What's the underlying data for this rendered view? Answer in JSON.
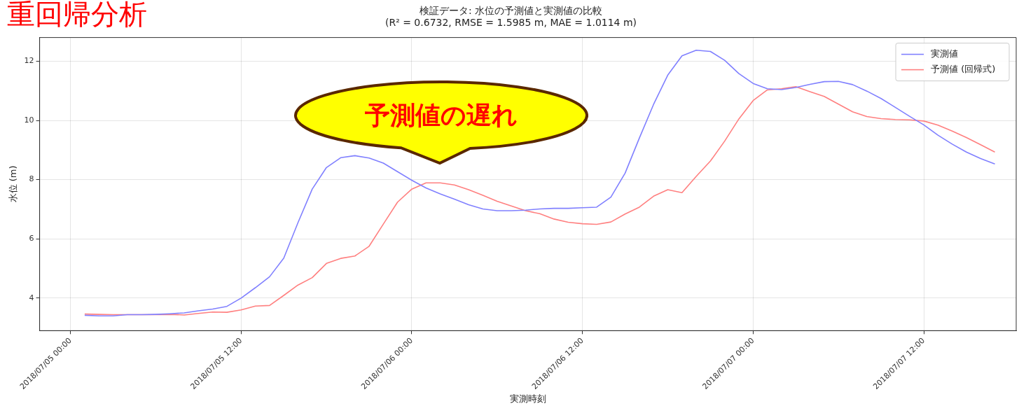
{
  "chart_data": {
    "type": "line",
    "title": "検証データ: 水位の予測値と実測値の比較",
    "subtitle": "(R² = 0.6732, RMSE = 1.5985 m, MAE = 1.0114 m)",
    "xlabel": "実測時刻",
    "ylabel": "水位 (m)",
    "annotations": [
      "重回帰分析",
      "予測値の遅れ"
    ],
    "x": [
      "2018-07-05T01:00",
      "2018-07-05T02:00",
      "2018-07-05T03:00",
      "2018-07-05T04:00",
      "2018-07-05T05:00",
      "2018-07-05T06:00",
      "2018-07-05T07:00",
      "2018-07-05T08:00",
      "2018-07-05T09:00",
      "2018-07-05T10:00",
      "2018-07-05T11:00",
      "2018-07-05T12:00",
      "2018-07-05T13:00",
      "2018-07-05T14:00",
      "2018-07-05T15:00",
      "2018-07-05T16:00",
      "2018-07-05T17:00",
      "2018-07-05T18:00",
      "2018-07-05T19:00",
      "2018-07-05T20:00",
      "2018-07-05T21:00",
      "2018-07-05T22:00",
      "2018-07-05T23:00",
      "2018-07-06T00:00",
      "2018-07-06T01:00",
      "2018-07-06T02:00",
      "2018-07-06T03:00",
      "2018-07-06T04:00",
      "2018-07-06T05:00",
      "2018-07-06T06:00",
      "2018-07-06T07:00",
      "2018-07-06T08:00",
      "2018-07-06T09:00",
      "2018-07-06T10:00",
      "2018-07-06T11:00",
      "2018-07-06T12:00",
      "2018-07-06T13:00",
      "2018-07-06T14:00",
      "2018-07-06T15:00",
      "2018-07-06T16:00",
      "2018-07-06T17:00",
      "2018-07-06T18:00",
      "2018-07-06T19:00",
      "2018-07-06T20:00",
      "2018-07-06T21:00",
      "2018-07-06T22:00",
      "2018-07-06T23:00",
      "2018-07-07T00:00",
      "2018-07-07T01:00",
      "2018-07-07T02:00",
      "2018-07-07T03:00",
      "2018-07-07T04:00",
      "2018-07-07T05:00",
      "2018-07-07T06:00",
      "2018-07-07T07:00",
      "2018-07-07T08:00",
      "2018-07-07T09:00",
      "2018-07-07T10:00",
      "2018-07-07T11:00",
      "2018-07-07T12:00",
      "2018-07-07T13:00",
      "2018-07-07T14:00",
      "2018-07-07T15:00",
      "2018-07-07T16:00",
      "2018-07-07T17:00"
    ],
    "series": [
      {
        "name": "実測値",
        "color": "#8080ff",
        "values": [
          3.42,
          3.4,
          3.4,
          3.44,
          3.44,
          3.45,
          3.47,
          3.5,
          3.57,
          3.63,
          3.72,
          4.0,
          4.35,
          4.72,
          5.35,
          6.55,
          7.68,
          8.41,
          8.74,
          8.81,
          8.73,
          8.56,
          8.27,
          7.98,
          7.72,
          7.52,
          7.34,
          7.15,
          7.01,
          6.95,
          6.95,
          6.97,
          7.01,
          7.03,
          7.03,
          7.05,
          7.07,
          7.41,
          8.22,
          9.4,
          10.54,
          11.53,
          12.18,
          12.37,
          12.33,
          12.03,
          11.58,
          11.25,
          11.07,
          11.04,
          11.11,
          11.22,
          11.31,
          11.32,
          11.21,
          10.99,
          10.74,
          10.44,
          10.14,
          9.85,
          9.5,
          9.2,
          8.93,
          8.71,
          8.53
        ]
      },
      {
        "name": "予測値 (回帰式)",
        "color": "#ff8080",
        "values": [
          3.46,
          3.45,
          3.44,
          3.44,
          3.44,
          3.44,
          3.45,
          3.43,
          3.48,
          3.53,
          3.52,
          3.6,
          3.73,
          3.75,
          4.09,
          4.44,
          4.69,
          5.17,
          5.34,
          5.42,
          5.75,
          6.5,
          7.24,
          7.68,
          7.89,
          7.89,
          7.82,
          7.66,
          7.47,
          7.27,
          7.11,
          6.95,
          6.85,
          6.67,
          6.56,
          6.51,
          6.49,
          6.57,
          6.84,
          7.07,
          7.44,
          7.66,
          7.56,
          8.11,
          8.63,
          9.3,
          10.05,
          10.67,
          11.03,
          11.07,
          11.14,
          10.97,
          10.81,
          10.55,
          10.29,
          10.13,
          10.06,
          10.03,
          10.02,
          9.98,
          9.84,
          9.64,
          9.42,
          9.18,
          8.93
        ]
      }
    ],
    "xlim": [
      "2018-07-04T21:50",
      "2018-07-07T18:30"
    ],
    "xticks": [
      {
        "value": "2018-07-05T00:00",
        "label": "2018/07/05 00:00"
      },
      {
        "value": "2018-07-05T12:00",
        "label": "2018/07/05 12:00"
      },
      {
        "value": "2018-07-06T00:00",
        "label": "2018/07/06 00:00"
      },
      {
        "value": "2018-07-06T12:00",
        "label": "2018/07/06 12:00"
      },
      {
        "value": "2018-07-07T00:00",
        "label": "2018/07/07 00:00"
      },
      {
        "value": "2018-07-07T12:00",
        "label": "2018/07/07 12:00"
      }
    ],
    "ylim": [
      2.9,
      12.8
    ],
    "yticks": [
      4,
      6,
      8,
      10,
      12
    ],
    "grid": true,
    "legend": "top right"
  }
}
